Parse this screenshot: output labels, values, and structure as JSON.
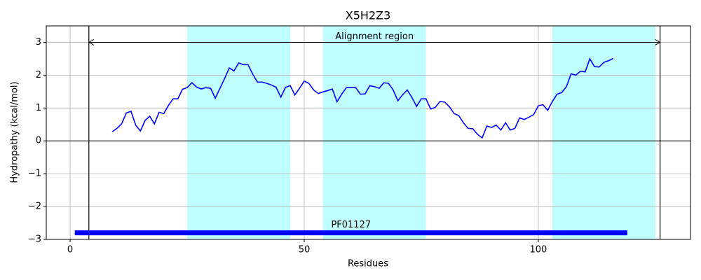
{
  "chart_data": {
    "type": "line",
    "title": "X5H2Z3",
    "x_label": "Residues",
    "y_label": "Hydropathy (kcal/mol)",
    "x": [
      9,
      10,
      11,
      12,
      13,
      14,
      15,
      16,
      17,
      18,
      19,
      20,
      21,
      22,
      23,
      24,
      25,
      26,
      27,
      28,
      29,
      30,
      31,
      32,
      33,
      34,
      35,
      36,
      37,
      38,
      39,
      40,
      41,
      42,
      43,
      44,
      45,
      46,
      47,
      48,
      49,
      50,
      51,
      52,
      53,
      54,
      55,
      56,
      57,
      58,
      59,
      60,
      61,
      62,
      63,
      64,
      65,
      66,
      67,
      68,
      69,
      70,
      71,
      72,
      73,
      74,
      75,
      76,
      77,
      78,
      79,
      80,
      81,
      82,
      83,
      84,
      85,
      86,
      87,
      88,
      89,
      90,
      91,
      92,
      93,
      94,
      95,
      96,
      97,
      98,
      99,
      100,
      101,
      102,
      103,
      104,
      105,
      106,
      107,
      108,
      109,
      110,
      111,
      112,
      113,
      114,
      115,
      116
    ],
    "series": [
      {
        "color": "#0000ff",
        "values": [
          0.28,
          0.38,
          0.52,
          0.85,
          0.9,
          0.48,
          0.3,
          0.62,
          0.75,
          0.52,
          0.87,
          0.83,
          1.08,
          1.28,
          1.28,
          1.57,
          1.62,
          1.77,
          1.64,
          1.58,
          1.62,
          1.6,
          1.3,
          1.6,
          1.9,
          2.22,
          2.13,
          2.37,
          2.32,
          2.32,
          2.03,
          1.79,
          1.79,
          1.75,
          1.7,
          1.63,
          1.33,
          1.63,
          1.68,
          1.4,
          1.6,
          1.82,
          1.75,
          1.55,
          1.44,
          1.49,
          1.53,
          1.58,
          1.19,
          1.42,
          1.62,
          1.62,
          1.62,
          1.42,
          1.43,
          1.68,
          1.65,
          1.6,
          1.77,
          1.75,
          1.55,
          1.22,
          1.4,
          1.55,
          1.32,
          1.05,
          1.28,
          1.28,
          0.97,
          1.02,
          1.2,
          1.18,
          1.04,
          0.83,
          0.77,
          0.55,
          0.38,
          0.37,
          0.2,
          0.09,
          0.45,
          0.41,
          0.48,
          0.33,
          0.55,
          0.33,
          0.38,
          0.7,
          0.65,
          0.72,
          0.8,
          1.07,
          1.1,
          0.93,
          1.2,
          1.42,
          1.47,
          1.65,
          2.04,
          2.0,
          2.12,
          2.1,
          2.5,
          2.26,
          2.25,
          2.39,
          2.44,
          2.51
        ]
      }
    ],
    "xlim": [
      -5.1,
      132.5
    ],
    "ylim": [
      -3,
      3.5
    ],
    "xticks": [
      0,
      50,
      100
    ],
    "yticks": [
      {
        "value": -3,
        "label": "−3"
      },
      {
        "value": -2,
        "label": "−2"
      },
      {
        "value": -1,
        "label": "−1"
      },
      0,
      1,
      2,
      3
    ],
    "grid": true,
    "hlines": [
      0
    ],
    "vlines": [
      4,
      126
    ],
    "highlight_regions": [
      [
        25,
        47
      ],
      [
        54,
        76
      ],
      [
        103,
        125
      ]
    ],
    "highlight_color": "#bfffff",
    "arrow_annotation": {
      "text": "Alignment region",
      "x_start": 4,
      "x_end": 126,
      "y": 3
    },
    "domain_bar": {
      "label": "PF01127",
      "start": 1,
      "end": 119,
      "y": -2.8,
      "color": "#0000ff"
    }
  }
}
